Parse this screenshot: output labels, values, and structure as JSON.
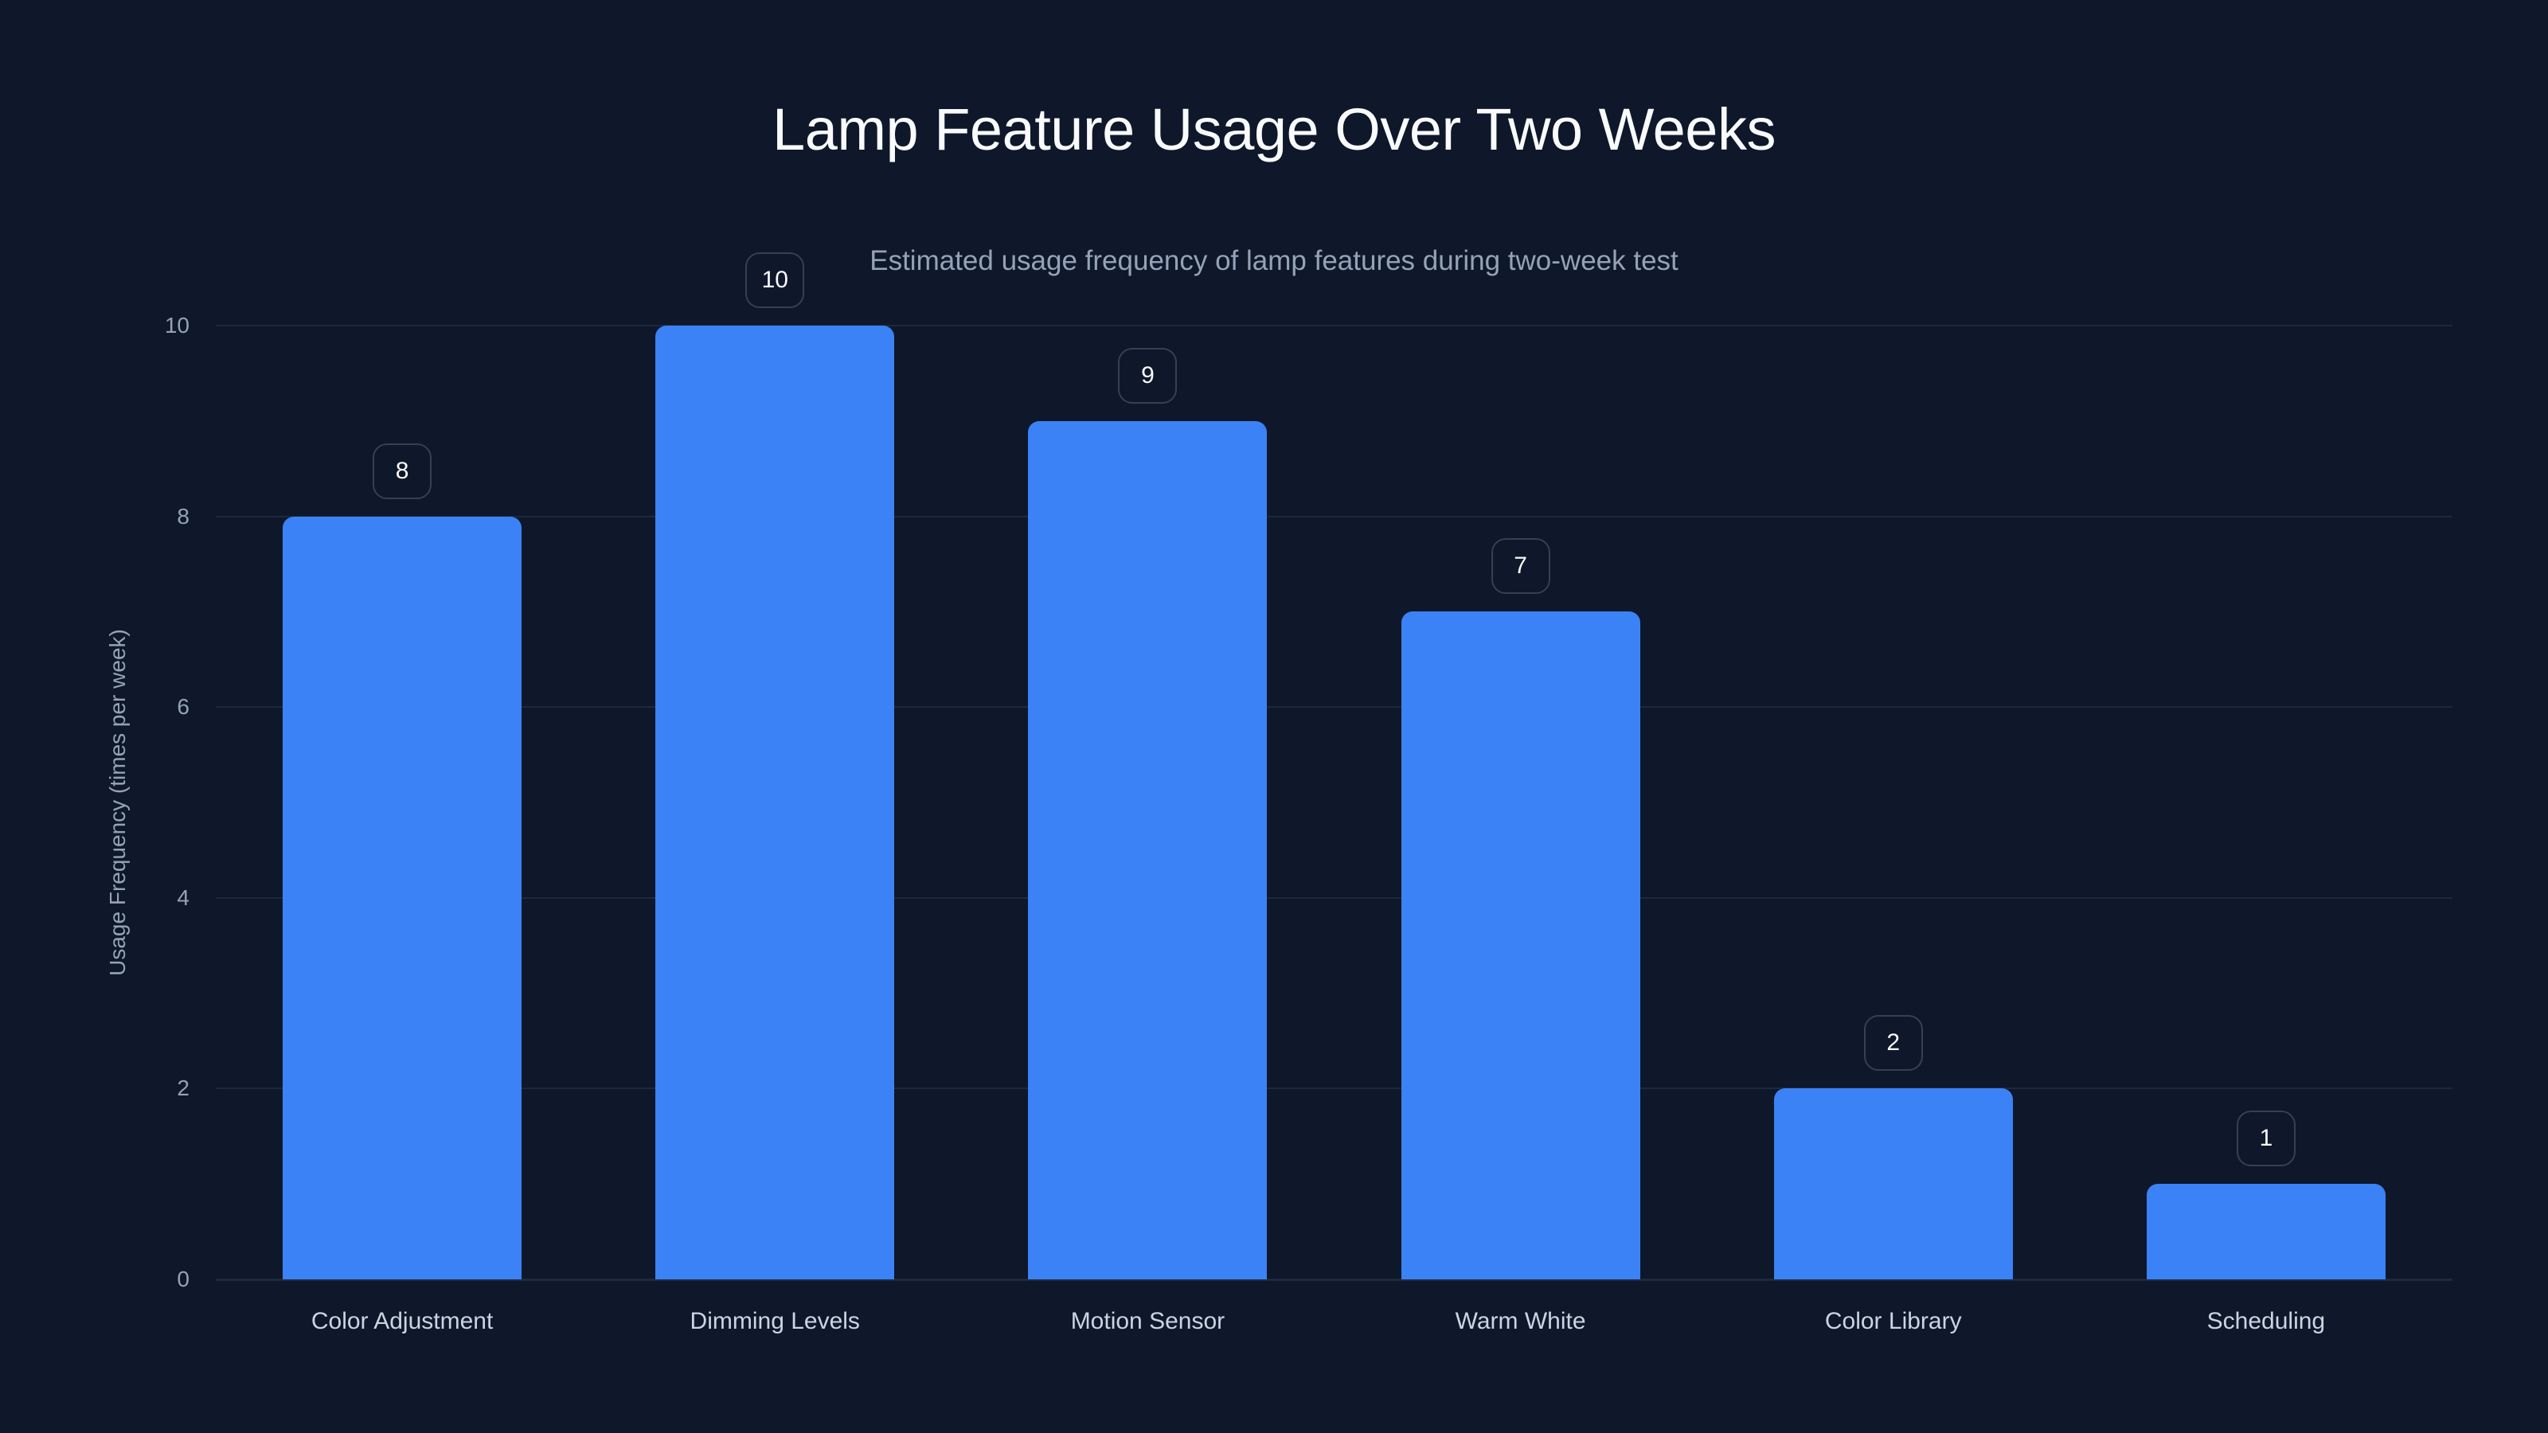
{
  "title": "Lamp Feature Usage Over Two Weeks",
  "subtitle": "Estimated usage frequency of lamp features during two-week test",
  "colors": {
    "background": "#0f172a",
    "bar": "#3b82f6",
    "grid": "#1e293b",
    "label_border": "#334155",
    "title": "#f8fafc",
    "muted_text": "#94a3b8",
    "category_text": "#cbd5e1"
  },
  "y_axis": {
    "title": "Usage Frequency (times per week)",
    "ticks": [
      "0",
      "2",
      "4",
      "6",
      "8",
      "10"
    ]
  },
  "chart_data": {
    "type": "bar",
    "title": "Lamp Feature Usage Over Two Weeks",
    "subtitle": "Estimated usage frequency of lamp features during two-week test",
    "categories": [
      "Color Adjustment",
      "Dimming Levels",
      "Motion Sensor",
      "Warm White",
      "Color Library",
      "Scheduling"
    ],
    "values": [
      8,
      10,
      9,
      7,
      2,
      1
    ],
    "xlabel": "",
    "ylabel": "Usage Frequency (times per week)",
    "ylim": [
      0,
      10
    ],
    "yticks": [
      0,
      2,
      4,
      6,
      8,
      10
    ],
    "grid": true,
    "legend": null,
    "data_labels": true
  }
}
